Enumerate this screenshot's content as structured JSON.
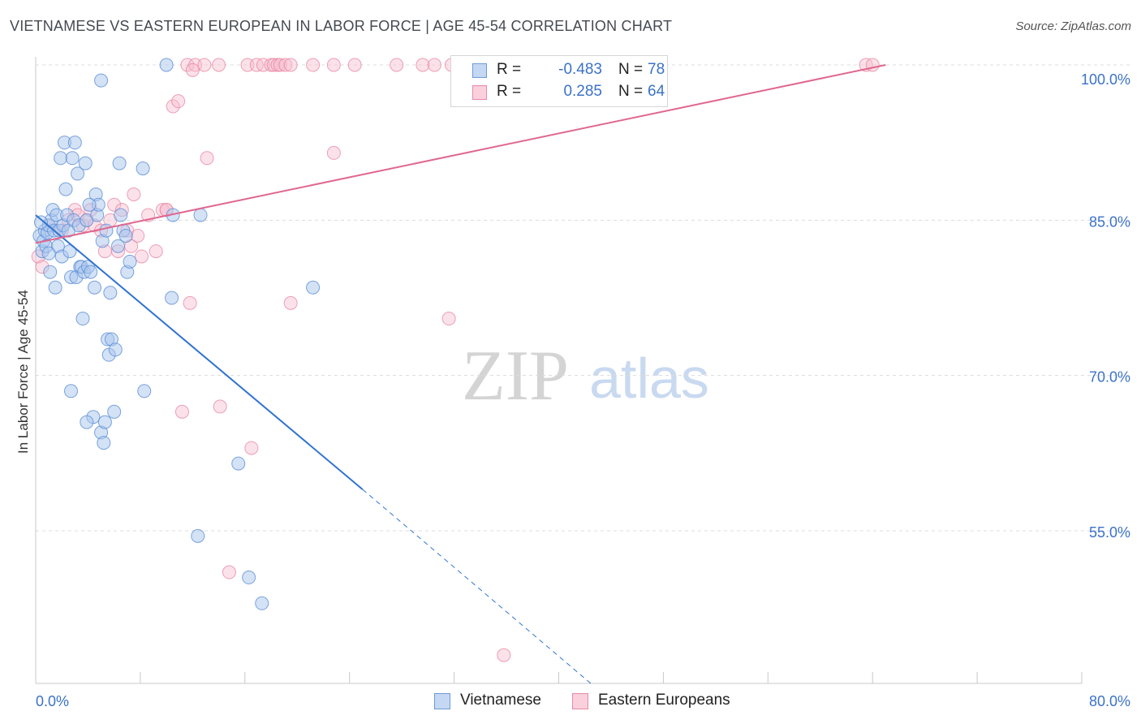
{
  "title": "VIETNAMESE VS EASTERN EUROPEAN IN LABOR FORCE | AGE 45-54 CORRELATION CHART",
  "source": "Source: ZipAtlas.com",
  "watermark": {
    "zip": "ZIP",
    "atlas": "atlas"
  },
  "colors": {
    "blue_fill": "#aac6ee",
    "blue_stroke": "#5b8fd6",
    "blue_line": "#2f73d0",
    "pink_fill": "#f6bfd0",
    "pink_stroke": "#e8819f",
    "pink_line": "#e0678f",
    "grid": "#dcdcdc",
    "tick_label": "#3b72c8"
  },
  "legend": {
    "rows": [
      {
        "r_label": "R =",
        "r_value": "-0.483",
        "n_label": "N =",
        "n_value": "78"
      },
      {
        "r_label": "R =",
        "r_value": "0.285",
        "n_label": "N =",
        "n_value": "64"
      }
    ]
  },
  "bottom_legend": [
    "Vietnamese",
    "Eastern Europeans"
  ],
  "chart_data": {
    "type": "scatter",
    "xlabel": "",
    "ylabel": "In Labor Force | Age 45-54",
    "xlim": [
      0,
      80
    ],
    "ylim": [
      40,
      101
    ],
    "x_tick_labels": [
      "0.0%",
      "80.0%"
    ],
    "y_ticks": [
      55,
      70,
      85,
      100
    ],
    "y_tick_labels": [
      "55.0%",
      "70.0%",
      "85.0%",
      "100.0%"
    ],
    "series": [
      {
        "name": "Vietnamese",
        "trend": {
          "x1": 0,
          "y1": 85.5,
          "x2": 25,
          "y2": 59.0,
          "dash_x2": 42.5,
          "dash_y2": 40.2
        },
        "points": [
          [
            0.3,
            83.5
          ],
          [
            0.5,
            82.0
          ],
          [
            0.6,
            83.0
          ],
          [
            0.7,
            84.0
          ],
          [
            0.8,
            82.5
          ],
          [
            0.9,
            83.8
          ],
          [
            1.0,
            84.5
          ],
          [
            1.1,
            80.0
          ],
          [
            1.2,
            85.0
          ],
          [
            1.3,
            86.0
          ],
          [
            1.4,
            84.0
          ],
          [
            1.5,
            78.5
          ],
          [
            1.6,
            85.5
          ],
          [
            1.7,
            82.5
          ],
          [
            1.8,
            84.0
          ],
          [
            1.9,
            91.0
          ],
          [
            2.0,
            81.5
          ],
          [
            2.1,
            84.5
          ],
          [
            2.2,
            92.5
          ],
          [
            2.3,
            88.0
          ],
          [
            2.4,
            85.5
          ],
          [
            2.5,
            84.0
          ],
          [
            2.6,
            82.0
          ],
          [
            2.7,
            79.5
          ],
          [
            2.8,
            91.0
          ],
          [
            2.9,
            85.0
          ],
          [
            3.0,
            92.5
          ],
          [
            3.1,
            79.5
          ],
          [
            3.2,
            89.5
          ],
          [
            3.3,
            84.5
          ],
          [
            3.4,
            80.5
          ],
          [
            3.5,
            80.5
          ],
          [
            3.6,
            75.5
          ],
          [
            3.7,
            80.0
          ],
          [
            3.8,
            90.5
          ],
          [
            3.9,
            85.0
          ],
          [
            4.0,
            80.5
          ],
          [
            4.2,
            80.0
          ],
          [
            4.4,
            66.0
          ],
          [
            4.5,
            78.5
          ],
          [
            4.6,
            87.5
          ],
          [
            4.7,
            85.5
          ],
          [
            4.8,
            86.5
          ],
          [
            5.0,
            64.5
          ],
          [
            5.1,
            83.0
          ],
          [
            5.2,
            63.5
          ],
          [
            5.3,
            65.5
          ],
          [
            5.4,
            84.0
          ],
          [
            5.5,
            73.5
          ],
          [
            5.6,
            72.0
          ],
          [
            5.7,
            78.0
          ],
          [
            5.8,
            73.5
          ],
          [
            6.0,
            66.5
          ],
          [
            6.1,
            72.5
          ],
          [
            6.3,
            82.5
          ],
          [
            6.4,
            90.5
          ],
          [
            6.5,
            85.5
          ],
          [
            6.7,
            84.0
          ],
          [
            6.9,
            83.5
          ],
          [
            7.0,
            80.0
          ],
          [
            7.2,
            81.0
          ],
          [
            8.2,
            90.0
          ],
          [
            8.3,
            68.5
          ],
          [
            10.0,
            100.0
          ],
          [
            10.4,
            77.5
          ],
          [
            10.5,
            85.5
          ],
          [
            12.4,
            54.5
          ],
          [
            12.6,
            85.5
          ],
          [
            15.5,
            61.5
          ],
          [
            16.3,
            50.5
          ],
          [
            17.3,
            48.0
          ],
          [
            21.2,
            78.5
          ],
          [
            0.4,
            84.8
          ],
          [
            1.0,
            81.8
          ],
          [
            2.7,
            68.5
          ],
          [
            3.9,
            65.5
          ],
          [
            5.0,
            98.5
          ],
          [
            4.1,
            86.5
          ]
        ]
      },
      {
        "name": "Eastern Europeans",
        "trend": {
          "x1": 0,
          "y1": 82.8,
          "x2": 65,
          "y2": 100.0
        },
        "points": [
          [
            0.2,
            81.5
          ],
          [
            0.5,
            80.5
          ],
          [
            1.0,
            84.5
          ],
          [
            2.0,
            84.0
          ],
          [
            2.5,
            85.0
          ],
          [
            3.0,
            86.0
          ],
          [
            3.2,
            85.5
          ],
          [
            3.6,
            84.5
          ],
          [
            3.9,
            85.0
          ],
          [
            4.2,
            86.0
          ],
          [
            4.5,
            84.5
          ],
          [
            5.0,
            84.0
          ],
          [
            5.3,
            82.0
          ],
          [
            5.7,
            85.0
          ],
          [
            6.0,
            86.5
          ],
          [
            6.3,
            82.0
          ],
          [
            6.6,
            86.0
          ],
          [
            7.0,
            84.0
          ],
          [
            7.3,
            82.5
          ],
          [
            7.5,
            87.5
          ],
          [
            7.8,
            83.5
          ],
          [
            8.1,
            81.5
          ],
          [
            8.6,
            85.5
          ],
          [
            9.2,
            82.0
          ],
          [
            9.7,
            86.0
          ],
          [
            10.0,
            86.0
          ],
          [
            10.5,
            96.0
          ],
          [
            10.9,
            96.5
          ],
          [
            11.2,
            66.5
          ],
          [
            11.6,
            100.0
          ],
          [
            11.8,
            77.0
          ],
          [
            12.2,
            100.0
          ],
          [
            12.9,
            100.0
          ],
          [
            13.1,
            91.0
          ],
          [
            14.0,
            100.0
          ],
          [
            14.1,
            67.0
          ],
          [
            14.8,
            51.0
          ],
          [
            16.2,
            100.0
          ],
          [
            16.5,
            63.0
          ],
          [
            16.9,
            100.0
          ],
          [
            17.4,
            100.0
          ],
          [
            18.0,
            100.0
          ],
          [
            18.2,
            100.0
          ],
          [
            18.5,
            100.0
          ],
          [
            18.7,
            100.0
          ],
          [
            19.1,
            100.0
          ],
          [
            19.5,
            100.0
          ],
          [
            21.2,
            100.0
          ],
          [
            22.8,
            100.0
          ],
          [
            22.8,
            91.5
          ],
          [
            24.4,
            100.0
          ],
          [
            27.6,
            100.0
          ],
          [
            29.6,
            100.0
          ],
          [
            30.5,
            100.0
          ],
          [
            31.6,
            75.5
          ],
          [
            31.8,
            100.0
          ],
          [
            34.8,
            100.0
          ],
          [
            35.8,
            43.0
          ],
          [
            36.5,
            100.0
          ],
          [
            63.5,
            100.0
          ],
          [
            64.0,
            100.0
          ],
          [
            19.5,
            77.0
          ],
          [
            12.0,
            99.5
          ],
          [
            10.0,
            86.0
          ]
        ]
      }
    ]
  }
}
